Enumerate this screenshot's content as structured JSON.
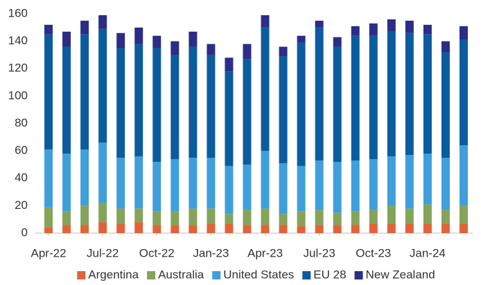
{
  "chart_data": {
    "type": "stacked_bar",
    "categories": [
      "Apr-22",
      null,
      null,
      "Jul-22",
      null,
      null,
      "Oct-22",
      null,
      null,
      "Jan-23",
      null,
      null,
      "Apr-23",
      null,
      null,
      "Jul-23",
      null,
      null,
      "Oct-23",
      null,
      null,
      "Jan-24",
      null,
      null
    ],
    "series": [
      {
        "name": "Argentina",
        "color": "#e0643a",
        "values": [
          4,
          6,
          6,
          8,
          7,
          8,
          6,
          6,
          6,
          7,
          7,
          6,
          6,
          6,
          5,
          6,
          6,
          6,
          7,
          7,
          7,
          7,
          7,
          7
        ]
      },
      {
        "name": "Australia",
        "color": "#86a35a",
        "values": [
          15,
          10,
          14,
          14,
          11,
          10,
          10,
          10,
          12,
          11,
          7,
          11,
          12,
          8,
          11,
          11,
          9,
          10,
          10,
          13,
          11,
          14,
          10,
          13
        ]
      },
      {
        "name": "United States",
        "color": "#3f9fdb",
        "values": [
          42,
          42,
          41,
          44,
          37,
          38,
          36,
          38,
          37,
          37,
          35,
          33,
          42,
          37,
          33,
          36,
          37,
          37,
          37,
          36,
          39,
          37,
          38,
          44
        ]
      },
      {
        "name": "EU 28",
        "color": "#0b5c9e",
        "values": [
          84,
          78,
          84,
          83,
          80,
          82,
          83,
          76,
          81,
          75,
          69,
          77,
          90,
          78,
          90,
          97,
          84,
          91,
          90,
          91,
          89,
          87,
          77,
          77
        ]
      },
      {
        "name": "New Zealand",
        "color": "#2b2d86",
        "values": [
          7,
          11,
          10,
          10,
          11,
          12,
          9,
          10,
          11,
          8,
          10,
          11,
          9,
          7,
          5,
          5,
          7,
          7,
          9,
          9,
          9,
          7,
          8,
          10
        ]
      }
    ],
    "ylim": [
      0,
      160
    ],
    "yticks": [
      0,
      20,
      40,
      60,
      80,
      100,
      120,
      140,
      160
    ],
    "grid": false,
    "legend": "bottom"
  }
}
